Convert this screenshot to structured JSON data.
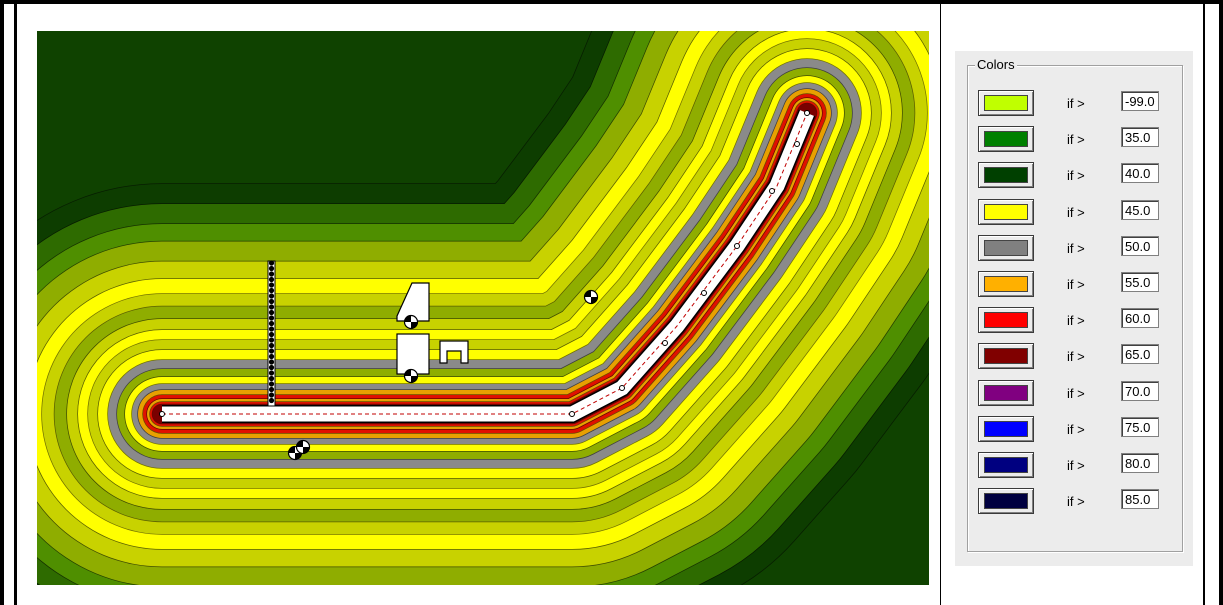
{
  "colors_panel": {
    "title": "Colors",
    "rows": [
      {
        "condition": "if >",
        "value": "-99.0",
        "color": "#c0ff00"
      },
      {
        "condition": "if >",
        "value": "35.0",
        "color": "#008000"
      },
      {
        "condition": "if >",
        "value": "40.0",
        "color": "#004000"
      },
      {
        "condition": "if >",
        "value": "45.0",
        "color": "#ffff00"
      },
      {
        "condition": "if >",
        "value": "50.0",
        "color": "#808080"
      },
      {
        "condition": "if >",
        "value": "55.0",
        "color": "#ffb000"
      },
      {
        "condition": "if >",
        "value": "60.0",
        "color": "#ff0000"
      },
      {
        "condition": "if >",
        "value": "65.0",
        "color": "#800000"
      },
      {
        "condition": "if >",
        "value": "70.0",
        "color": "#800080"
      },
      {
        "condition": "if >",
        "value": "75.0",
        "color": "#0000ff"
      },
      {
        "condition": "if >",
        "value": "80.0",
        "color": "#000080"
      },
      {
        "condition": "if >",
        "value": "85.0",
        "color": "#000040"
      }
    ]
  },
  "map": {
    "type": "noise-contour-map",
    "palette": {
      "outer_dark": "#0d3d00",
      "dark_green": "#2e6b00",
      "green": "#4f8f00",
      "olive": "#8fad00",
      "lime_yellow": "#c8d200",
      "yellow": "#ffff00",
      "grey": "#8a8a8a",
      "orange": "#e8a000",
      "red": "#e01000",
      "maroon": "#7a0000",
      "road": "#ffffff"
    }
  }
}
